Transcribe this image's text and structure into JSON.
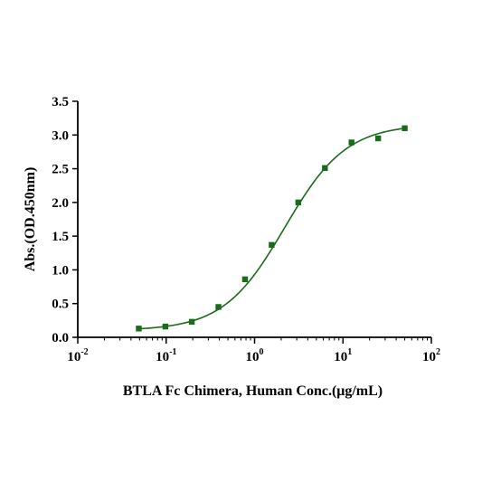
{
  "chart_data": {
    "type": "scatter",
    "xlabel": "BTLA Fc Chimera, Human Conc.(μg/mL)",
    "ylabel": "Abs.(OD.450nm)",
    "x_scale": "log",
    "xlim": [
      0.01,
      100
    ],
    "ylim": [
      0,
      3.5
    ],
    "x_ticks": [
      {
        "value": 0.01,
        "base": "10",
        "exp": "-2"
      },
      {
        "value": 0.1,
        "base": "10",
        "exp": "-1"
      },
      {
        "value": 1,
        "base": "10",
        "exp": "0"
      },
      {
        "value": 10,
        "base": "10",
        "exp": "1"
      },
      {
        "value": 100,
        "base": "10",
        "exp": "2"
      }
    ],
    "y_ticks": [
      "0.0",
      "0.5",
      "1.0",
      "1.5",
      "2.0",
      "2.5",
      "3.0",
      "3.5"
    ],
    "grid": false,
    "series": [
      {
        "x": [
          0.049,
          0.098,
          0.195,
          0.39,
          0.78,
          1.56,
          3.125,
          6.25,
          12.5,
          25,
          50
        ],
        "y": [
          0.13,
          0.16,
          0.23,
          0.45,
          0.86,
          1.37,
          2.0,
          2.51,
          2.89,
          2.95,
          3.1
        ]
      }
    ],
    "fit": {
      "model": "4PL",
      "bottom": 0.1,
      "top": 3.16,
      "ec50": 2.2,
      "hill": 1.25
    },
    "colors": {
      "markers": "#1a6b1a",
      "curve": "#1a6b1a",
      "axes": "#000000"
    }
  }
}
